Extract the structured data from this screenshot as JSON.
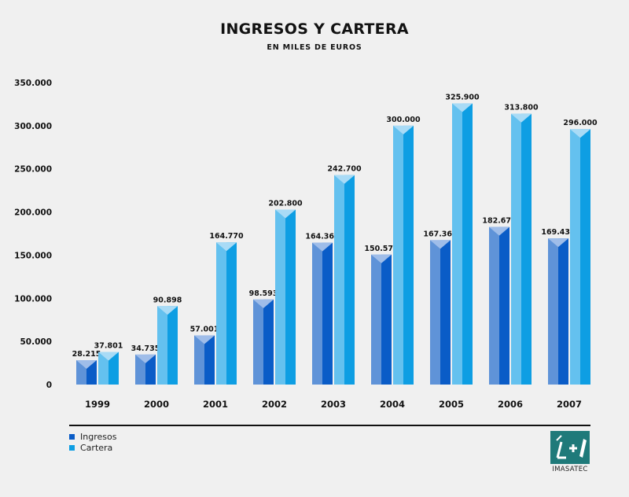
{
  "header": {
    "title": "INGRESOS Y CARTERA",
    "subtitle": "EN MILES DE EUROS"
  },
  "legend": {
    "ingresos": "Ingresos",
    "cartera": "Cartera"
  },
  "colors": {
    "ingresos_front": "#0a5cc7",
    "ingresos_side": "#5f93d8",
    "ingresos_top": "#9fbde9",
    "cartera_front": "#0e9ee3",
    "cartera_side": "#64c1ef",
    "cartera_top": "#a9dbf6"
  },
  "logo": {
    "name": "IMASATEC"
  },
  "chart_data": {
    "type": "bar",
    "categories": [
      "1999",
      "2000",
      "2001",
      "2002",
      "2003",
      "2004",
      "2005",
      "2006",
      "2007"
    ],
    "series": [
      {
        "name": "Ingresos",
        "values": [
          28215,
          34735,
          57001,
          98593,
          164367,
          150579,
          167366,
          182675,
          169432
        ],
        "labels": [
          "28.215",
          "34.735",
          "57.001",
          "98.593",
          "164.367",
          "150.579",
          "167.366",
          "182.675",
          "169.432"
        ]
      },
      {
        "name": "Cartera",
        "values": [
          37801,
          90898,
          164770,
          202800,
          242700,
          300000,
          325900,
          313800,
          296000
        ],
        "labels": [
          "37.801",
          "90.898",
          "164.770",
          "202.800",
          "242.700",
          "300.000",
          "325.900",
          "313.800",
          "296.000"
        ]
      }
    ],
    "yticks": [
      "0",
      "50.000",
      "100.000",
      "150.000",
      "200.000",
      "250.000",
      "300.000",
      "350.000"
    ],
    "ylim": [
      0,
      350000
    ],
    "grid": false,
    "legend_position": "bottom-left"
  }
}
